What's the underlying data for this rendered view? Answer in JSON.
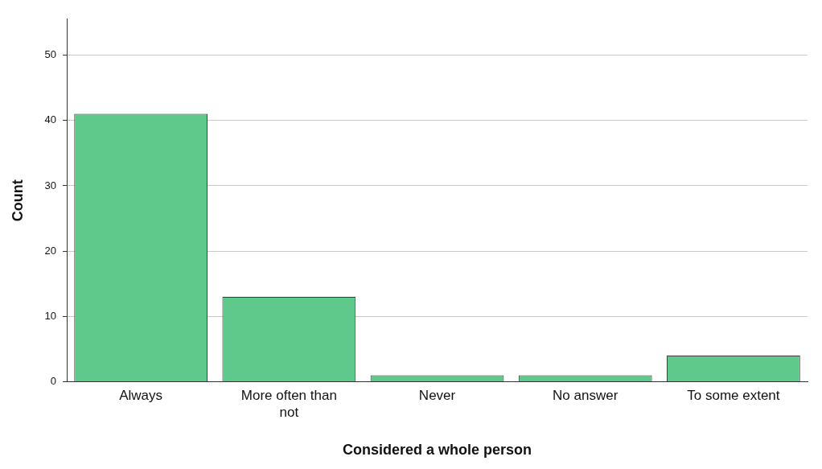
{
  "chart_data": {
    "type": "bar",
    "xlabel": "Considered a whole person",
    "ylabel": "Count",
    "categories": [
      "Always",
      "More often than not",
      "Never",
      "No answer",
      "To some extent"
    ],
    "values": [
      41,
      13,
      1,
      1,
      4
    ],
    "color": "#5ec98a",
    "ylim": [
      0,
      55.5
    ],
    "yticks": [
      0,
      10,
      20,
      30,
      40,
      50
    ],
    "grid": "y"
  }
}
